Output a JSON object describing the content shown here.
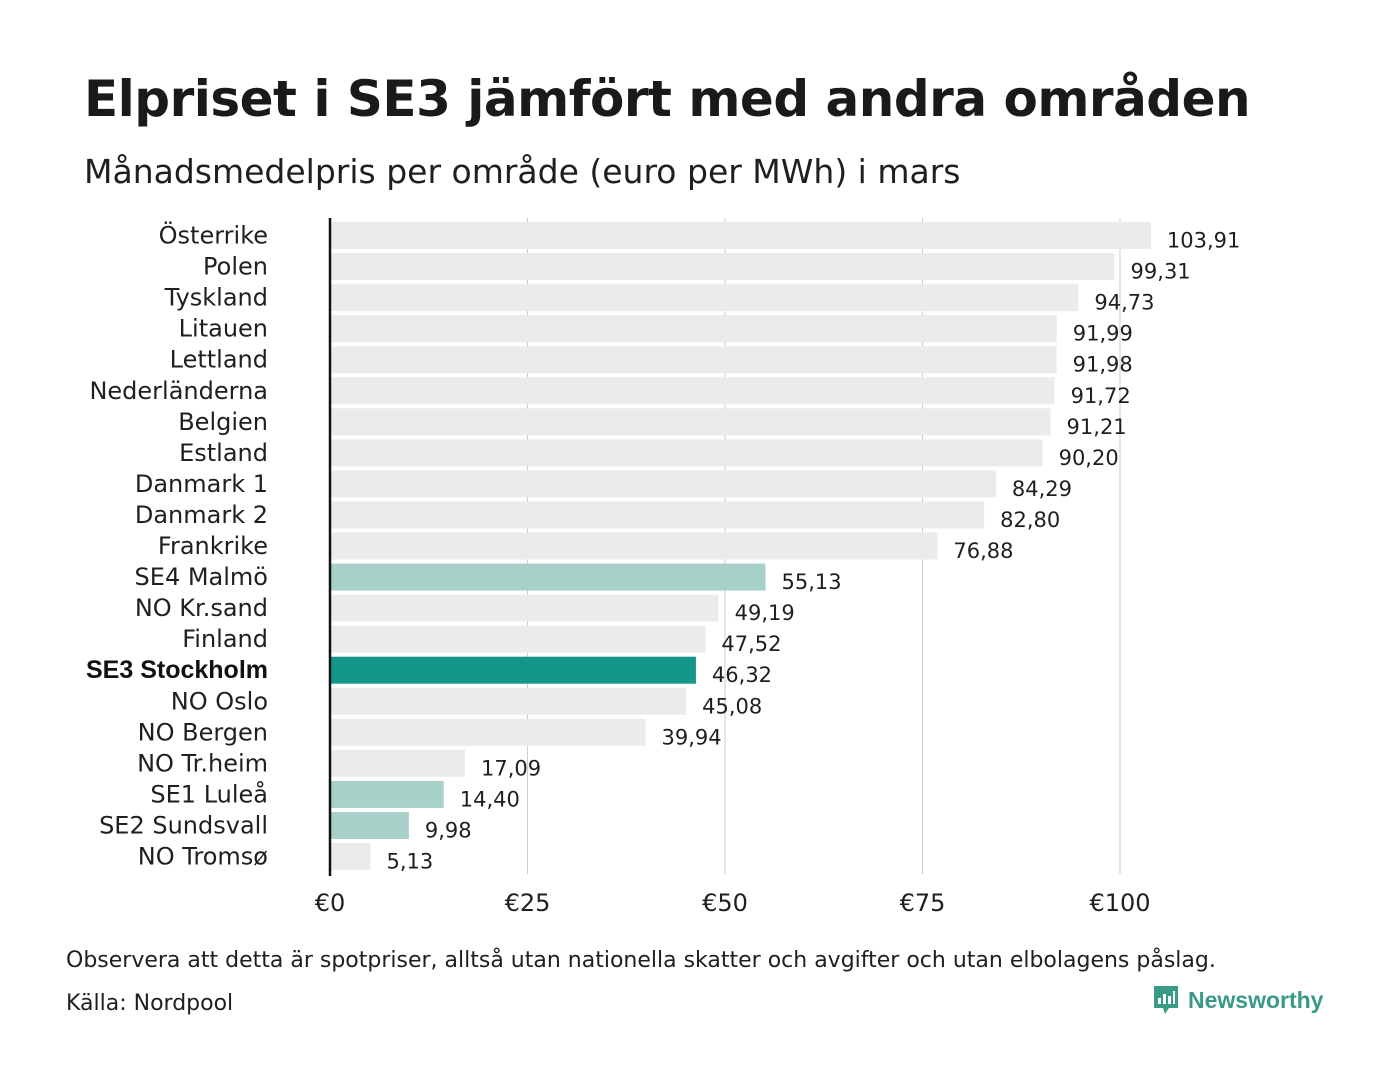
{
  "title": "Elpriset i SE3 jämfört med andra områden",
  "subtitle": "Månadsmedelpris per område (euro per MWh) i mars",
  "note": "Observera att detta är spotpriser, alltså utan nationella skatter och avgifter och utan elbolagens påslag.",
  "source": "Källa: Nordpool",
  "brand": {
    "name": "Newsworthy",
    "icon": "bar-chart-speech-bubble-icon",
    "color": "#3a9a88"
  },
  "colors": {
    "default": "#ebebeb",
    "swedish": "#a7d0c8",
    "highlight": "#15968a",
    "gridline": "#c9cbd6",
    "axis": "#111111"
  },
  "chart_data": {
    "type": "bar",
    "orientation": "horizontal",
    "title": "Elpriset i SE3 jämfört med andra områden",
    "subtitle": "Månadsmedelpris per område (euro per MWh) i mars",
    "categories": [
      "Österrike",
      "Polen",
      "Tyskland",
      "Litauen",
      "Lettland",
      "Nederländerna",
      "Belgien",
      "Estland",
      "Danmark  1",
      "Danmark  2",
      "Frankrike",
      "SE4  Malmö",
      "NO Kr.sand",
      "Finland",
      "SE3 Stockholm",
      "NO Oslo",
      "NO Bergen",
      "NO Tr.heim",
      "SE1  Luleå",
      "SE2  Sundsvall",
      "NO Tromsø"
    ],
    "values": [
      103.91,
      99.31,
      94.73,
      91.99,
      91.98,
      91.72,
      91.21,
      90.2,
      84.29,
      82.8,
      76.88,
      55.13,
      49.19,
      47.52,
      46.32,
      45.08,
      39.94,
      17.09,
      14.4,
      9.98,
      5.13
    ],
    "value_labels": [
      "103,91",
      "99,31",
      "94,73",
      "91,99",
      "91,98",
      "91,72",
      "91,21",
      "90,20",
      "84,29",
      "82,80",
      "76,88",
      "55,13",
      "49,19",
      "47,52",
      "46,32",
      "45,08",
      "39,94",
      "17,09",
      "14,40",
      "9,98",
      "5,13"
    ],
    "bar_color_group": [
      "default",
      "default",
      "default",
      "default",
      "default",
      "default",
      "default",
      "default",
      "default",
      "default",
      "default",
      "swedish",
      "default",
      "default",
      "highlight",
      "default",
      "default",
      "default",
      "swedish",
      "swedish",
      "default"
    ],
    "highlighted_category": "SE3 Stockholm",
    "xlim": [
      0,
      110
    ],
    "xticks": [
      0,
      25,
      50,
      75,
      100
    ],
    "xtick_labels": [
      "€0",
      "€25",
      "€50",
      "€75",
      "€100"
    ],
    "grid": "vertical",
    "legend": "none"
  }
}
